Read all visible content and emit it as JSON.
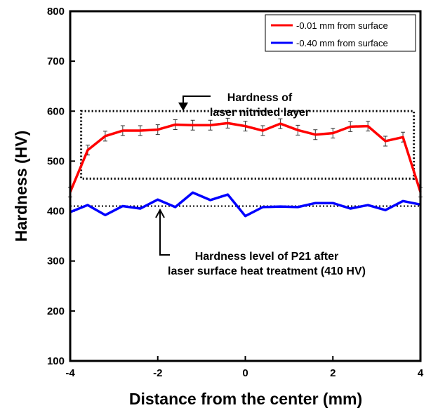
{
  "chart_data": {
    "type": "line",
    "xlabel": "Distance from the center (mm)",
    "ylabel": "Hardness (HV)",
    "xlim": [
      -4,
      4
    ],
    "ylim": [
      100,
      800
    ],
    "xticks": [
      -4,
      -2,
      0,
      2,
      4
    ],
    "yticks": [
      100,
      200,
      300,
      400,
      500,
      600,
      700,
      800
    ],
    "legend_position": "top-right",
    "x": [
      -4,
      -3.6,
      -3.2,
      -2.8,
      -2.4,
      -2,
      -1.6,
      -1.2,
      -0.8,
      -0.4,
      0,
      0.4,
      0.8,
      1.2,
      1.6,
      2,
      2.4,
      2.8,
      3.2,
      3.6,
      4
    ],
    "series": [
      {
        "name": "-0.01 mm from surface",
        "color": "#ff0000",
        "error_bars": true,
        "values": [
          438,
          522,
          550,
          561,
          561,
          563,
          573,
          572,
          572,
          576,
          570,
          561,
          575,
          562,
          553,
          556,
          569,
          570,
          540,
          548,
          438
        ]
      },
      {
        "name": "-0.40 mm from surface",
        "color": "#0000ff",
        "error_bars": false,
        "values": [
          398,
          412,
          392,
          410,
          405,
          423,
          408,
          437,
          422,
          433,
          390,
          408,
          409,
          408,
          416,
          416,
          405,
          412,
          402,
          420,
          413
        ]
      }
    ],
    "reference_line": {
      "value": 410
    },
    "highlight_box": {
      "x": [
        -3.75,
        3.85
      ],
      "y": [
        465,
        600
      ]
    },
    "annotations": [
      {
        "lines": [
          "Hardness of",
          "laser nitrided layer"
        ]
      },
      {
        "lines": [
          "Hardness level of P21 after",
          "laser surface heat treatment (410 HV)"
        ]
      }
    ]
  }
}
